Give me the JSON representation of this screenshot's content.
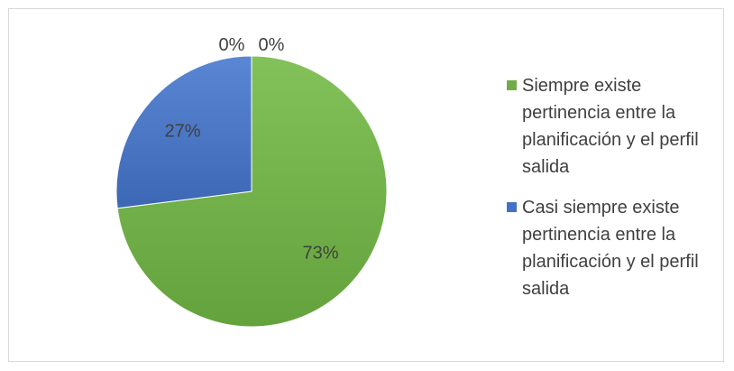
{
  "chart_data": {
    "type": "pie",
    "title": "",
    "slices": [
      {
        "label": "Siempre existe pertinencia entre la planificación y el perfil salida",
        "value": 73,
        "value_label": "73%",
        "color": "#70ad47"
      },
      {
        "label": "Casi siempre existe pertinencia entre la planificación y el perfil salida",
        "value": 27,
        "value_label": "27%",
        "color": "#4472c4"
      },
      {
        "label": "",
        "value": 0,
        "value_label": "0%",
        "color": "#a5a5a5"
      },
      {
        "label": "",
        "value": 0,
        "value_label": "0%",
        "color": "#ffc000"
      }
    ],
    "legend_position": "right",
    "start_angle_deg": 0,
    "direction": "clockwise"
  }
}
